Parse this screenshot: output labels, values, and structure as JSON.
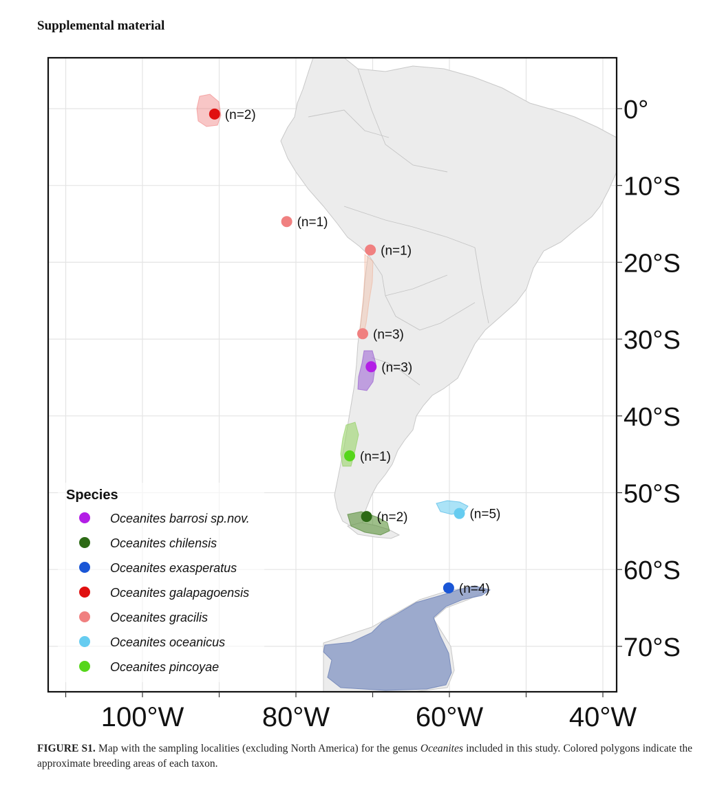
{
  "header": {
    "title": "Supplemental material"
  },
  "axes": {
    "lon_labels": [
      "100°W",
      "80°W",
      "60°W",
      "40°W"
    ],
    "lat_labels": [
      "0°",
      "10°S",
      "20°S",
      "30°S",
      "40°S",
      "50°S",
      "60°S",
      "70°S"
    ]
  },
  "legend": {
    "title": "Species",
    "items": [
      {
        "label": "Oceanites barrosi sp.nov.",
        "color": "#b31ee6"
      },
      {
        "label": "Oceanites chilensis",
        "color": "#2d6a16"
      },
      {
        "label": "Oceanites exasperatus",
        "color": "#1a56d6"
      },
      {
        "label": "Oceanites galapagoensis",
        "color": "#e01010"
      },
      {
        "label": "Oceanites gracilis",
        "color": "#f08080"
      },
      {
        "label": "Oceanites oceanicus",
        "color": "#66ccf0"
      },
      {
        "label": "Oceanites pincoyae",
        "color": "#55d61a"
      }
    ]
  },
  "localities": [
    {
      "species": "Oceanites galapagoensis",
      "n_label": "(n=2)",
      "lon": -90.6,
      "lat": -0.7
    },
    {
      "species": "Oceanites gracilis",
      "n_label": "(n=1)",
      "lon": -81.2,
      "lat": -14.7
    },
    {
      "species": "Oceanites gracilis",
      "n_label": "(n=1)",
      "lon": -70.3,
      "lat": -18.4
    },
    {
      "species": "Oceanites gracilis",
      "n_label": "(n=3)",
      "lon": -71.3,
      "lat": -29.3
    },
    {
      "species": "Oceanites barrosi sp.nov.",
      "n_label": "(n=3)",
      "lon": -70.2,
      "lat": -33.6
    },
    {
      "species": "Oceanites pincoyae",
      "n_label": "(n=1)",
      "lon": -73.0,
      "lat": -45.2
    },
    {
      "species": "Oceanites chilensis",
      "n_label": "(n=2)",
      "lon": -70.8,
      "lat": -53.1
    },
    {
      "species": "Oceanites oceanicus",
      "n_label": "(n=5)",
      "lon": -58.7,
      "lat": -52.7
    },
    {
      "species": "Oceanites exasperatus",
      "n_label": "(n=4)",
      "lon": -60.1,
      "lat": -62.4
    }
  ],
  "caption": {
    "label": "FIGURE S1.",
    "text_before_genus": " Map with the sampling localities (excluding North America) for the genus ",
    "genus": "Oceanites",
    "text_after_genus": " included in this study. Colored polygons indicate the approximate breeding areas of each taxon."
  }
}
